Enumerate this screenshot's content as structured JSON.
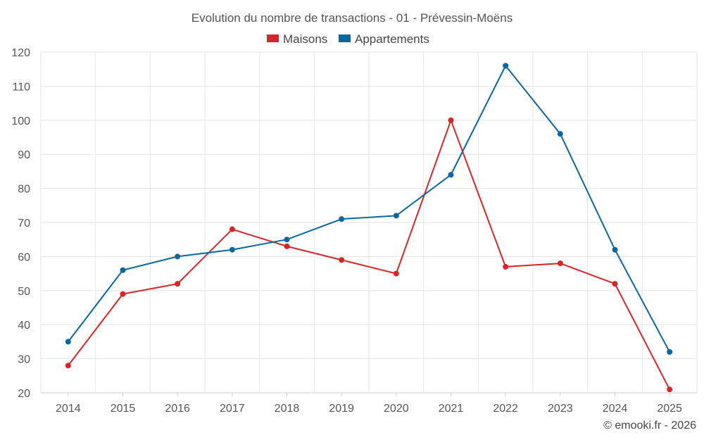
{
  "chart_data": {
    "type": "line",
    "title": "Evolution du nombre de transactions - 01 - Prévessin-Moëns",
    "categories": [
      "2014",
      "2015",
      "2016",
      "2017",
      "2018",
      "2019",
      "2020",
      "2021",
      "2022",
      "2023",
      "2024",
      "2025"
    ],
    "series": [
      {
        "name": "Maisons",
        "color": "#d62728",
        "values": [
          28,
          49,
          52,
          68,
          63,
          59,
          55,
          100,
          57,
          58,
          52,
          21
        ]
      },
      {
        "name": "Appartements",
        "color": "#0a67a0",
        "values": [
          35,
          56,
          60,
          62,
          65,
          71,
          72,
          84,
          116,
          96,
          62,
          32
        ]
      }
    ],
    "ylim": [
      20,
      120
    ],
    "yticks": [
      20,
      30,
      40,
      50,
      60,
      70,
      80,
      90,
      100,
      110,
      120
    ],
    "xlabel": "",
    "ylabel": "",
    "grid": true,
    "legend": "top-center"
  },
  "credit": "© emooki.fr - 2026"
}
